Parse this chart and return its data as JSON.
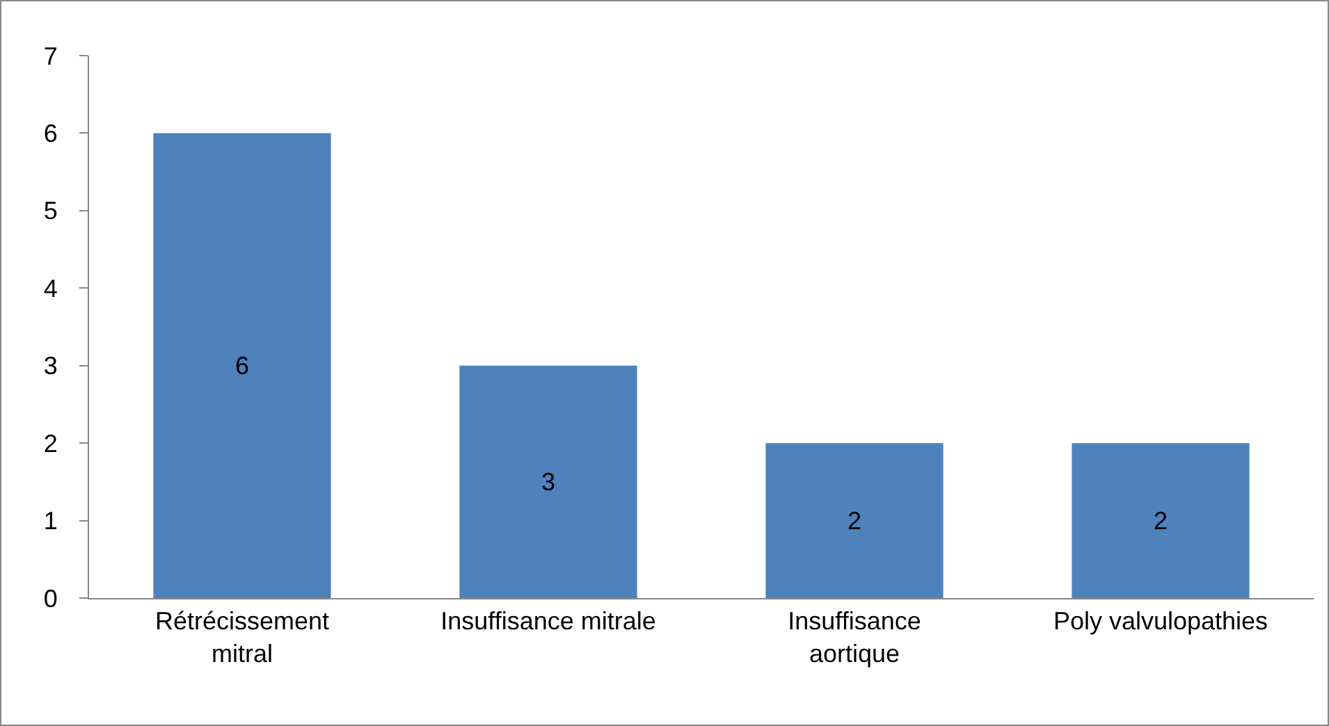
{
  "chart_data": {
    "type": "bar",
    "categories": [
      "Rétrécissement mitral",
      "Insuffisance mitrale",
      "Insuffisance aortique",
      "Poly valvulopathies"
    ],
    "values": [
      6,
      3,
      2,
      2
    ],
    "color": "#4f81bd",
    "ylim": [
      0,
      7
    ],
    "yticks": [
      0,
      1,
      2,
      3,
      4,
      5,
      6,
      7
    ],
    "data_labels": true,
    "grid": false
  }
}
